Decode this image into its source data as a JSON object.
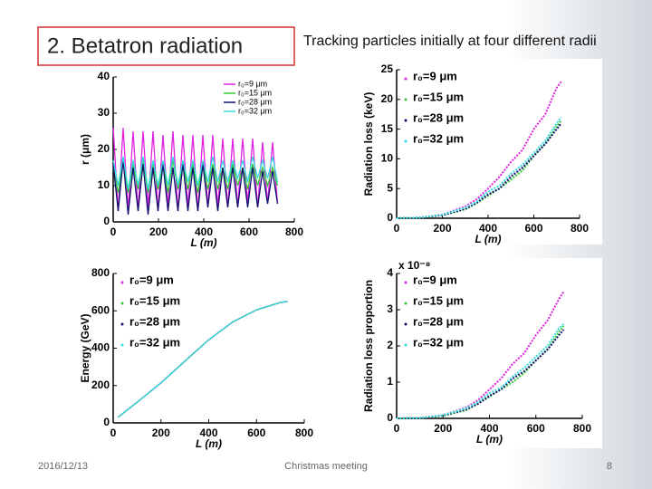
{
  "slide": {
    "title": "2.  Betatron radiation",
    "subtitle": "Tracking particles initially at four different radii",
    "date": "2016/12/13",
    "footer": "Christmas meeting",
    "page": "8"
  },
  "chart_data": [
    {
      "type": "line",
      "xlabel": "L (m)",
      "ylabel": "r (μm)",
      "xlim": [
        0,
        800
      ],
      "ylim": [
        0,
        40
      ],
      "xticks": [
        0,
        200,
        400,
        600,
        800
      ],
      "yticks": [
        0,
        10,
        20,
        30,
        40
      ],
      "legend": "upper right",
      "markers": false,
      "x": [
        0,
        22,
        44,
        66,
        88,
        110,
        132,
        154,
        176,
        198,
        220,
        242,
        264,
        286,
        308,
        330,
        352,
        374,
        396,
        418,
        440,
        462,
        484,
        506,
        528,
        550,
        572,
        594,
        616,
        638,
        660,
        682,
        704,
        726
      ],
      "series": [
        {
          "name": "r₀=9 μm",
          "color": "#e020e0",
          "values": [
            26,
            3,
            26,
            3,
            25,
            3,
            25,
            4,
            25,
            3,
            24,
            4,
            25,
            3,
            24,
            4,
            24,
            3,
            24,
            4,
            24,
            4,
            23,
            4,
            23,
            4,
            23,
            5,
            23,
            4,
            22,
            5,
            22,
            5
          ]
        },
        {
          "name": "r₀=15 μm",
          "color": "#33cc33",
          "values": [
            15,
            8,
            17,
            8,
            16,
            9,
            17,
            8,
            16,
            9,
            16,
            8,
            17,
            9,
            16,
            9,
            16,
            8,
            16,
            9,
            16,
            9,
            15,
            9,
            16,
            10,
            15,
            9,
            16,
            10,
            15,
            10,
            15,
            10
          ]
        },
        {
          "name": "r₀=28 μm",
          "color": "#101070",
          "values": [
            16,
            3,
            17,
            2,
            15,
            3,
            16,
            2,
            15,
            3,
            16,
            3,
            15,
            3,
            16,
            3,
            15,
            3,
            16,
            4,
            15,
            3,
            15,
            4,
            15,
            4,
            15,
            4,
            15,
            4,
            14,
            5,
            14,
            5
          ]
        },
        {
          "name": "r₀=32 μm",
          "color": "#33dddd",
          "values": [
            17,
            10,
            18,
            9,
            17,
            10,
            18,
            9,
            17,
            10,
            17,
            10,
            18,
            10,
            17,
            11,
            17,
            10,
            17,
            11,
            18,
            11,
            17,
            11,
            17,
            12,
            17,
            11,
            18,
            12,
            17,
            12,
            18,
            11
          ]
        }
      ]
    },
    {
      "type": "line",
      "xlabel": "L (m)",
      "ylabel": "Radiation loss (keV)",
      "xlim": [
        0,
        800
      ],
      "ylim": [
        0,
        25
      ],
      "xticks": [
        0,
        200,
        400,
        600,
        800
      ],
      "yticks": [
        0,
        5,
        10,
        15,
        20,
        25
      ],
      "legend": "upper left",
      "markers": true,
      "x": [
        0,
        100,
        200,
        300,
        350,
        400,
        450,
        500,
        550,
        600,
        650,
        700,
        720
      ],
      "series": [
        {
          "name": "r₀=9 μm",
          "color": "#e020e0",
          "values": [
            0,
            0.1,
            0.6,
            2,
            3.2,
            5,
            7,
            9.5,
            11.5,
            15,
            17.5,
            22,
            23
          ]
        },
        {
          "name": "r₀=15 μm",
          "color": "#33cc33",
          "values": [
            0,
            0.1,
            0.5,
            1.5,
            2.5,
            3.8,
            5,
            6.5,
            8,
            10.5,
            12.5,
            15.5,
            16.5
          ]
        },
        {
          "name": "r₀=28 μm",
          "color": "#101070",
          "values": [
            0,
            0.1,
            0.5,
            1.6,
            2.6,
            4,
            5,
            7,
            8.5,
            10.5,
            12.5,
            15,
            16
          ]
        },
        {
          "name": "r₀=32 μm",
          "color": "#33dddd",
          "values": [
            0,
            0.1,
            0.6,
            1.8,
            2.8,
            4.5,
            5.5,
            7.5,
            9,
            11,
            13,
            16,
            17
          ]
        }
      ]
    },
    {
      "type": "line",
      "xlabel": "L (m)",
      "ylabel": "Energy (GeV)",
      "xlim": [
        0,
        800
      ],
      "ylim": [
        0,
        800
      ],
      "xticks": [
        0,
        200,
        400,
        600,
        800
      ],
      "yticks": [
        0,
        200,
        400,
        600,
        800
      ],
      "legend": "upper left",
      "markers": false,
      "x": [
        20,
        100,
        200,
        300,
        400,
        500,
        600,
        700,
        730
      ],
      "series": [
        {
          "name": "r₀=9 μm",
          "color": "#e020e0",
          "values": [
            30,
            110,
            215,
            330,
            445,
            540,
            605,
            645,
            650
          ]
        },
        {
          "name": "r₀=15 μm",
          "color": "#33cc33",
          "values": [
            30,
            110,
            215,
            330,
            445,
            540,
            605,
            645,
            650
          ]
        },
        {
          "name": "r₀=28 μm",
          "color": "#101070",
          "values": [
            30,
            110,
            215,
            330,
            445,
            540,
            605,
            645,
            650
          ]
        },
        {
          "name": "r₀=32 μm",
          "color": "#33dddd",
          "values": [
            30,
            110,
            215,
            330,
            445,
            540,
            605,
            645,
            650
          ]
        }
      ]
    },
    {
      "type": "line",
      "xlabel": "L (m)",
      "ylabel": "Radiation loss proportion",
      "axis_multiplier": "x 10⁻⁸",
      "xlim": [
        0,
        800
      ],
      "ylim": [
        0,
        4
      ],
      "xticks": [
        0,
        200,
        400,
        600,
        800
      ],
      "yticks": [
        0,
        1,
        2,
        3,
        4
      ],
      "legend": "upper left",
      "markers": true,
      "x": [
        0,
        100,
        200,
        300,
        350,
        400,
        450,
        500,
        550,
        600,
        650,
        700,
        720
      ],
      "series": [
        {
          "name": "r₀=9 μm",
          "color": "#e020e0",
          "values": [
            0,
            0.01,
            0.09,
            0.3,
            0.5,
            0.8,
            1.1,
            1.5,
            1.8,
            2.3,
            2.7,
            3.3,
            3.5
          ]
        },
        {
          "name": "r₀=15 μm",
          "color": "#33cc33",
          "values": [
            0,
            0.01,
            0.07,
            0.23,
            0.4,
            0.6,
            0.8,
            1.0,
            1.25,
            1.6,
            1.9,
            2.4,
            2.55
          ]
        },
        {
          "name": "r₀=28 μm",
          "color": "#101070",
          "values": [
            0,
            0.01,
            0.08,
            0.25,
            0.4,
            0.62,
            0.8,
            1.1,
            1.3,
            1.6,
            1.9,
            2.3,
            2.45
          ]
        },
        {
          "name": "r₀=32 μm",
          "color": "#33dddd",
          "values": [
            0,
            0.01,
            0.09,
            0.28,
            0.45,
            0.7,
            0.85,
            1.15,
            1.4,
            1.7,
            2.0,
            2.5,
            2.6
          ]
        }
      ]
    }
  ]
}
